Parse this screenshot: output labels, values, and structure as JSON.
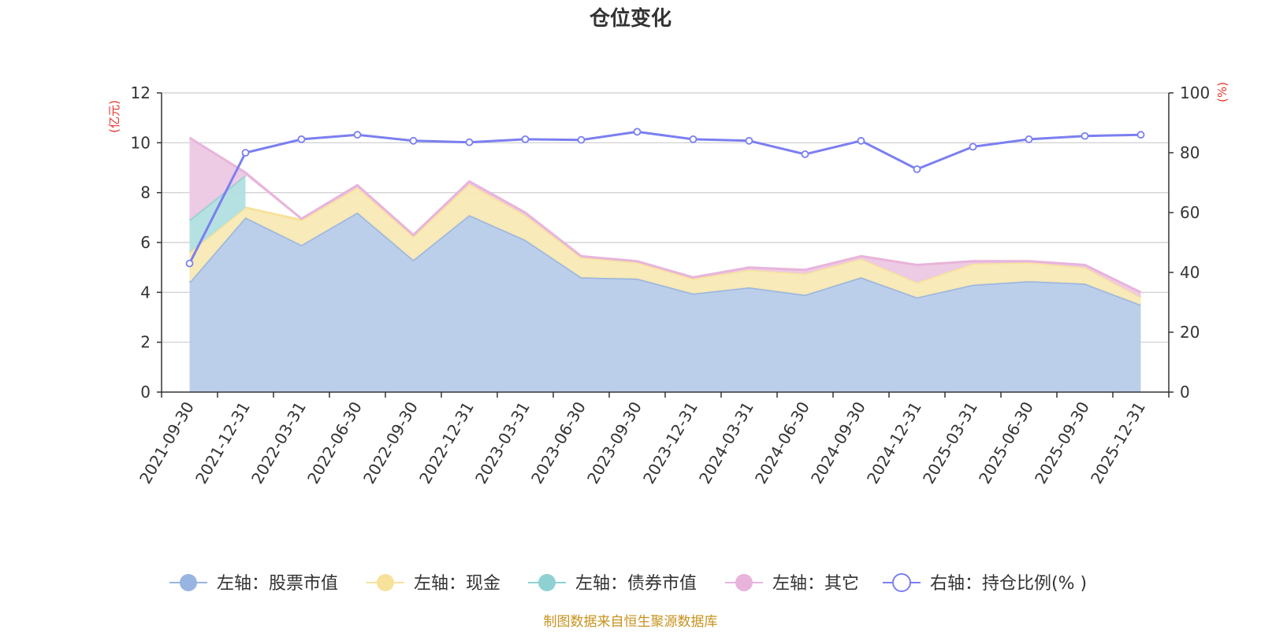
{
  "chart_data": {
    "type": "area",
    "title": "仓位变化",
    "left_axis": {
      "label": "(亿元)",
      "min": 0,
      "max": 12,
      "ticks": [
        0,
        2,
        4,
        6,
        8,
        10,
        12
      ]
    },
    "right_axis": {
      "label": "(%)",
      "min": 0,
      "max": 100,
      "ticks": [
        0,
        20,
        40,
        60,
        80,
        100
      ]
    },
    "categories": [
      "2021-09-30",
      "2021-12-31",
      "2022-03-31",
      "2022-06-30",
      "2022-09-30",
      "2022-12-31",
      "2023-03-31",
      "2023-06-30",
      "2023-09-30",
      "2023-12-31",
      "2024-03-31",
      "2024-06-30",
      "2024-09-30",
      "2024-12-31",
      "2025-03-31",
      "2025-06-30",
      "2025-09-30",
      "2025-12-31"
    ],
    "series": [
      {
        "name": "左轴：股票市值",
        "axis": "left",
        "stacked": true,
        "color": "#98b4e0",
        "fill": "#b8cce9",
        "values": [
          4.4,
          7.0,
          5.9,
          7.2,
          5.3,
          7.1,
          6.1,
          4.6,
          4.55,
          3.95,
          4.2,
          3.9,
          4.6,
          3.8,
          4.3,
          4.45,
          4.35,
          3.5
        ]
      },
      {
        "name": "左轴：现金",
        "axis": "left",
        "stacked": true,
        "color": "#f7e29b",
        "fill": "#f8e9b5",
        "values": [
          1.2,
          0.4,
          1.0,
          1.0,
          0.95,
          1.25,
          1.0,
          0.8,
          0.65,
          0.6,
          0.7,
          0.85,
          0.75,
          0.6,
          0.85,
          0.75,
          0.65,
          0.3
        ]
      },
      {
        "name": "左轴：债券市值",
        "axis": "left",
        "stacked": true,
        "color": "#8fd1d3",
        "fill": "#b1dfe0",
        "values": [
          1.3,
          1.3,
          0,
          0,
          0,
          0,
          0,
          0,
          0,
          0,
          0,
          0,
          0,
          0,
          0,
          0,
          0,
          0
        ]
      },
      {
        "name": "左轴：其它",
        "axis": "left",
        "stacked": true,
        "color": "#e8b4db",
        "fill": "#edc8e3",
        "values": [
          3.3,
          0.1,
          0.05,
          0.1,
          0.05,
          0.1,
          0.1,
          0.05,
          0.05,
          0.05,
          0.1,
          0.15,
          0.1,
          0.7,
          0.1,
          0.05,
          0.1,
          0.2
        ]
      },
      {
        "name": "右轴：持仓比例(%)",
        "axis": "right",
        "stacked": false,
        "color": "#7b7ff0",
        "values": [
          43,
          80,
          84.5,
          86,
          84,
          83.5,
          84.5,
          84.3,
          87,
          84.5,
          84,
          79.5,
          84,
          74.5,
          82,
          84.5,
          85.6,
          86
        ]
      }
    ],
    "legend": [
      "左轴：股票市值",
      "左轴：现金",
      "左轴：债券市值",
      "左轴：其它",
      "右轴：持仓比例(% )"
    ],
    "legend_position": "bottom",
    "grid": true
  },
  "footer": {
    "source": "制图数据来自恒生聚源数据库"
  },
  "colors": {
    "axis_label": "#e8352f",
    "footer": "#c7921e",
    "grid": "#cccccc",
    "text": "#333333"
  }
}
